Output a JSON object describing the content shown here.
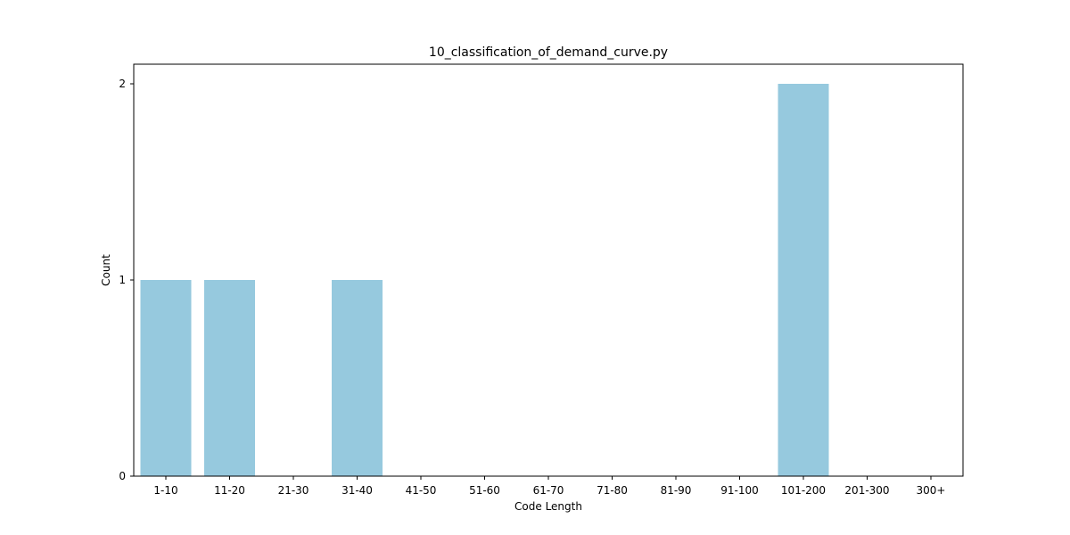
{
  "chart_data": {
    "type": "bar",
    "title": "10_classification_of_demand_curve.py",
    "xlabel": "Code Length",
    "ylabel": "Count",
    "categories": [
      "1-10",
      "11-20",
      "21-30",
      "31-40",
      "41-50",
      "51-60",
      "61-70",
      "71-80",
      "81-90",
      "91-100",
      "101-200",
      "201-300",
      "300+"
    ],
    "values": [
      1,
      1,
      0,
      1,
      0,
      0,
      0,
      0,
      0,
      0,
      2,
      0,
      0
    ],
    "yticks": [
      "0",
      "1",
      "2"
    ],
    "ylim": [
      0,
      2.1
    ],
    "grid": false,
    "legend": "none",
    "bar_color": "#96c9de"
  }
}
